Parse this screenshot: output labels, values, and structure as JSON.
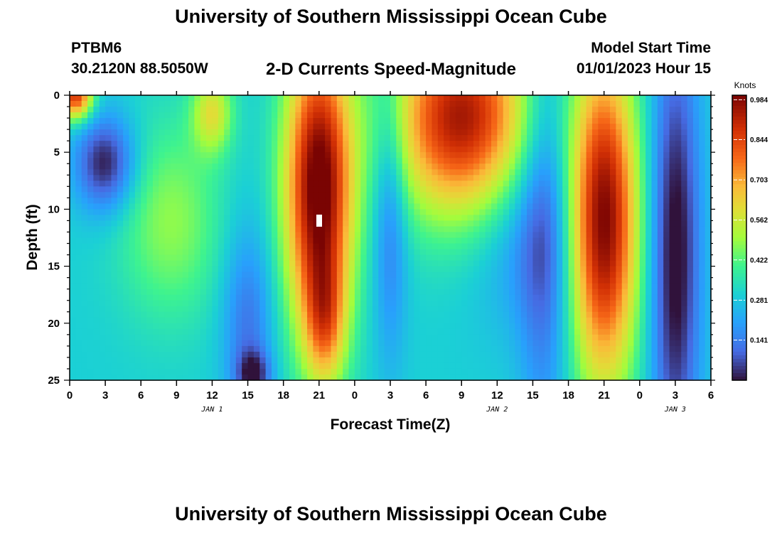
{
  "page": {
    "main_title": "University of Southern Mississippi Ocean Cube",
    "bottom_title": "University of Southern Mississippi Ocean Cube",
    "station_id": "PTBM6",
    "station_coords": "30.2120N  88.5050W",
    "plot_title": "2-D Currents Speed-Magnitude",
    "model_start_label": "Model Start Time",
    "model_start_value": "01/01/2023 Hour 15"
  },
  "chart_data": {
    "type": "heatmap",
    "title": "2-D Currents Speed-Magnitude",
    "xlabel": "Forecast Time(Z)",
    "ylabel": "Depth (ft)",
    "x_tick_labels": [
      "0",
      "3",
      "6",
      "9",
      "12",
      "15",
      "18",
      "21",
      "0",
      "3",
      "6",
      "9",
      "12",
      "15",
      "18",
      "21",
      "0",
      "3",
      "6"
    ],
    "x_range_hours_from_jan1_00z": [
      0,
      54
    ],
    "y_tick_labels": [
      "0",
      "5",
      "10",
      "15",
      "20",
      "25"
    ],
    "y_range_ft": [
      0,
      25
    ],
    "day_labels": [
      {
        "text": "JAN 1",
        "hour": 12
      },
      {
        "text": "JAN 2",
        "hour": 36
      },
      {
        "text": "JAN 3",
        "hour": 51
      }
    ],
    "colorbar": {
      "unit": "Knots",
      "min": 0.0,
      "max": 1.0,
      "tick_values": [
        0.984,
        0.844,
        0.703,
        0.562,
        0.422,
        0.281,
        0.141
      ],
      "tick_labels": [
        "0.984",
        "0.844",
        "0.703",
        "0.562",
        "0.422",
        "0.281",
        "0.141"
      ]
    },
    "speed_features_knots": [
      {
        "hour": 3,
        "depth_ft": 6,
        "speed": 0.02,
        "note": "low speed core"
      },
      {
        "hour": 21,
        "depth_ft": 10,
        "speed": 0.99,
        "note": "maximum speed core"
      },
      {
        "hour": 33,
        "depth_ft": 1,
        "speed": 0.92
      },
      {
        "hour": 45,
        "depth_ft": 10,
        "speed": 0.97
      },
      {
        "hour": 51,
        "depth_ft": 20,
        "speed": 0.05
      }
    ],
    "grid": false
  }
}
